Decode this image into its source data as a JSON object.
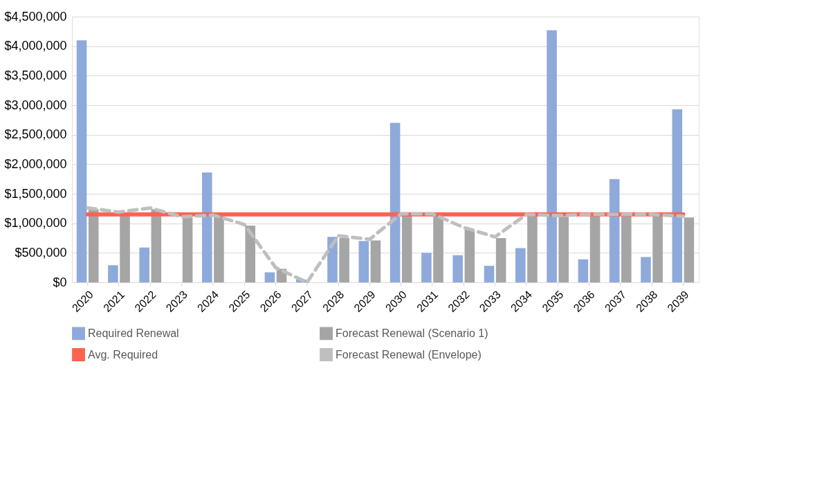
{
  "chart_data": {
    "type": "bar",
    "categories": [
      "2020",
      "2021",
      "2022",
      "2023",
      "2024",
      "2025",
      "2026",
      "2027",
      "2028",
      "2029",
      "2030",
      "2031",
      "2032",
      "2033",
      "2034",
      "2035",
      "2036",
      "2037",
      "2038",
      "2039"
    ],
    "series": [
      {
        "name": "Required Renewal",
        "color": "#8eaadb",
        "values": [
          4100000,
          290000,
          590000,
          0,
          1860000,
          0,
          170000,
          50000,
          770000,
          700000,
          2700000,
          500000,
          460000,
          280000,
          580000,
          4270000,
          390000,
          1750000,
          430000,
          2930000
        ]
      },
      {
        "name": "Forecast Renewal (Scenario 1)",
        "color": "#a5a5a5",
        "values": [
          1240000,
          1130000,
          1240000,
          1100000,
          1120000,
          960000,
          230000,
          0,
          750000,
          710000,
          1130000,
          1130000,
          900000,
          750000,
          1130000,
          1110000,
          1130000,
          1130000,
          1130000,
          1100000
        ]
      },
      {
        "name": "Avg. Required",
        "type": "line",
        "line_style": "solid",
        "color": "#ff6251",
        "values": [
          1150000,
          1150000,
          1150000,
          1150000,
          1150000,
          1150000,
          1150000,
          1150000,
          1150000,
          1150000,
          1150000,
          1150000,
          1150000,
          1150000,
          1150000,
          1150000,
          1150000,
          1150000,
          1150000,
          1150000
        ]
      },
      {
        "name": "Forecast Renewal (Envelope)",
        "type": "line",
        "line_style": "dashed",
        "color": "#bfbfbf",
        "values": [
          1260000,
          1190000,
          1260000,
          1110000,
          1140000,
          980000,
          250000,
          0,
          790000,
          730000,
          1160000,
          1160000,
          930000,
          770000,
          1150000,
          1130000,
          1150000,
          1150000,
          1150000,
          1120000
        ]
      }
    ],
    "ylim": [
      0,
      4500000
    ],
    "yticks": [
      {
        "value": 0,
        "label": "$0"
      },
      {
        "value": 500000,
        "label": "$500,000"
      },
      {
        "value": 1000000,
        "label": "$1,000,000"
      },
      {
        "value": 1500000,
        "label": "$1,500,000"
      },
      {
        "value": 2000000,
        "label": "$2,000,000"
      },
      {
        "value": 2500000,
        "label": "$2,500,000"
      },
      {
        "value": 3000000,
        "label": "$3,000,000"
      },
      {
        "value": 3500000,
        "label": "$3,500,000"
      },
      {
        "value": 4000000,
        "label": "$4,000,000"
      },
      {
        "value": 4500000,
        "label": "$4,500,000"
      }
    ],
    "grid": "y",
    "legend": "bottom",
    "marker": "none"
  }
}
